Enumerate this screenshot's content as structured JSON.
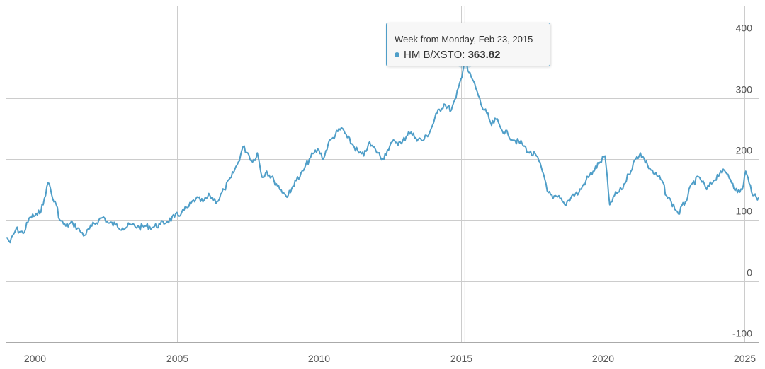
{
  "chart_data": {
    "type": "line",
    "title": "",
    "xlabel": "",
    "ylabel": "",
    "x_range": [
      "1998-12-28",
      "2025-06-30"
    ],
    "ylim": [
      -100,
      450
    ],
    "yticks": [
      -100,
      0,
      100,
      200,
      300,
      400
    ],
    "xticks": [
      "2000",
      "2005",
      "2010",
      "2015",
      "2020",
      "2025"
    ],
    "grid": true,
    "legend": "none",
    "series": [
      {
        "name": "HM B/XSTO",
        "color": "#4f9ec8",
        "points": [
          [
            "1999-01-01",
            72
          ],
          [
            "1999-02-15",
            63
          ],
          [
            "1999-05-01",
            85
          ],
          [
            "1999-08-01",
            78
          ],
          [
            "1999-11-01",
            105
          ],
          [
            "2000-02-01",
            108
          ],
          [
            "2000-04-15",
            125
          ],
          [
            "2000-06-01",
            155
          ],
          [
            "2000-07-01",
            160
          ],
          [
            "2000-08-15",
            135
          ],
          [
            "2000-10-01",
            125
          ],
          [
            "2000-11-15",
            100
          ],
          [
            "2001-02-01",
            90
          ],
          [
            "2001-05-01",
            95
          ],
          [
            "2001-08-01",
            82
          ],
          [
            "2001-10-01",
            75
          ],
          [
            "2002-01-01",
            90
          ],
          [
            "2002-04-01",
            100
          ],
          [
            "2002-06-01",
            105
          ],
          [
            "2002-08-01",
            95
          ],
          [
            "2002-11-01",
            92
          ],
          [
            "2003-02-01",
            87
          ],
          [
            "2003-06-01",
            92
          ],
          [
            "2003-09-01",
            88
          ],
          [
            "2003-12-01",
            90
          ],
          [
            "2004-03-01",
            88
          ],
          [
            "2004-06-01",
            93
          ],
          [
            "2004-09-01",
            98
          ],
          [
            "2004-12-01",
            105
          ],
          [
            "2005-03-01",
            112
          ],
          [
            "2005-06-01",
            122
          ],
          [
            "2005-09-01",
            135
          ],
          [
            "2005-12-01",
            130
          ],
          [
            "2006-03-01",
            140
          ],
          [
            "2006-06-01",
            130
          ],
          [
            "2006-09-01",
            150
          ],
          [
            "2006-12-01",
            170
          ],
          [
            "2007-03-01",
            195
          ],
          [
            "2007-05-01",
            220
          ],
          [
            "2007-07-01",
            210
          ],
          [
            "2007-09-01",
            195
          ],
          [
            "2007-11-01",
            210
          ],
          [
            "2008-01-01",
            170
          ],
          [
            "2008-03-01",
            180
          ],
          [
            "2008-06-01",
            165
          ],
          [
            "2008-09-01",
            150
          ],
          [
            "2008-11-01",
            140
          ],
          [
            "2009-01-01",
            145
          ],
          [
            "2009-03-01",
            165
          ],
          [
            "2009-05-01",
            170
          ],
          [
            "2009-07-01",
            185
          ],
          [
            "2009-09-01",
            200
          ],
          [
            "2009-11-01",
            210
          ],
          [
            "2010-01-01",
            215
          ],
          [
            "2010-03-01",
            200
          ],
          [
            "2010-05-01",
            225
          ],
          [
            "2010-07-01",
            235
          ],
          [
            "2010-09-01",
            245
          ],
          [
            "2010-11-01",
            250
          ],
          [
            "2011-01-01",
            235
          ],
          [
            "2011-03-01",
            225
          ],
          [
            "2011-06-01",
            210
          ],
          [
            "2011-08-01",
            205
          ],
          [
            "2011-10-01",
            225
          ],
          [
            "2012-01-01",
            215
          ],
          [
            "2012-04-01",
            200
          ],
          [
            "2012-06-01",
            215
          ],
          [
            "2012-09-01",
            230
          ],
          [
            "2012-12-01",
            225
          ],
          [
            "2013-03-01",
            245
          ],
          [
            "2013-06-01",
            235
          ],
          [
            "2013-09-01",
            230
          ],
          [
            "2013-12-01",
            245
          ],
          [
            "2014-03-01",
            275
          ],
          [
            "2014-06-01",
            290
          ],
          [
            "2014-09-01",
            280
          ],
          [
            "2014-11-01",
            300
          ],
          [
            "2015-01-01",
            330
          ],
          [
            "2015-02-23",
            363.82
          ],
          [
            "2015-04-01",
            345
          ],
          [
            "2015-06-01",
            330
          ],
          [
            "2015-08-01",
            310
          ],
          [
            "2015-10-01",
            285
          ],
          [
            "2015-12-01",
            275
          ],
          [
            "2016-02-01",
            255
          ],
          [
            "2016-04-01",
            265
          ],
          [
            "2016-06-01",
            250
          ],
          [
            "2016-09-01",
            240
          ],
          [
            "2016-12-01",
            230
          ],
          [
            "2017-03-01",
            225
          ],
          [
            "2017-06-01",
            210
          ],
          [
            "2017-09-01",
            205
          ],
          [
            "2017-12-01",
            175
          ],
          [
            "2018-02-01",
            145
          ],
          [
            "2018-04-01",
            135
          ],
          [
            "2018-06-01",
            138
          ],
          [
            "2018-09-01",
            125
          ],
          [
            "2018-12-01",
            140
          ],
          [
            "2019-03-01",
            145
          ],
          [
            "2019-06-01",
            165
          ],
          [
            "2019-09-01",
            180
          ],
          [
            "2019-12-01",
            195
          ],
          [
            "2020-02-01",
            205
          ],
          [
            "2020-03-15",
            145
          ],
          [
            "2020-04-01",
            125
          ],
          [
            "2020-06-01",
            140
          ],
          [
            "2020-09-01",
            150
          ],
          [
            "2020-12-01",
            175
          ],
          [
            "2021-03-01",
            200
          ],
          [
            "2021-05-01",
            210
          ],
          [
            "2021-08-01",
            190
          ],
          [
            "2021-11-01",
            175
          ],
          [
            "2022-02-01",
            165
          ],
          [
            "2022-04-01",
            140
          ],
          [
            "2022-06-01",
            130
          ],
          [
            "2022-09-01",
            110
          ],
          [
            "2022-12-01",
            130
          ],
          [
            "2023-03-01",
            160
          ],
          [
            "2023-06-01",
            170
          ],
          [
            "2023-09-01",
            150
          ],
          [
            "2023-12-01",
            165
          ],
          [
            "2024-03-01",
            180
          ],
          [
            "2024-06-01",
            175
          ],
          [
            "2024-08-01",
            160
          ],
          [
            "2024-10-01",
            145
          ],
          [
            "2024-12-01",
            150
          ],
          [
            "2025-01-15",
            180
          ],
          [
            "2025-03-01",
            160
          ],
          [
            "2025-05-01",
            140
          ],
          [
            "2025-06-15",
            133
          ],
          [
            "2025-06-30",
            137
          ]
        ]
      }
    ],
    "tooltip": {
      "date_label": "Week from Monday, Feb 23, 2015",
      "series_label": "HM B/XSTO:",
      "value_label": "363.82",
      "date": "2015-02-23",
      "value": 363.82
    }
  }
}
